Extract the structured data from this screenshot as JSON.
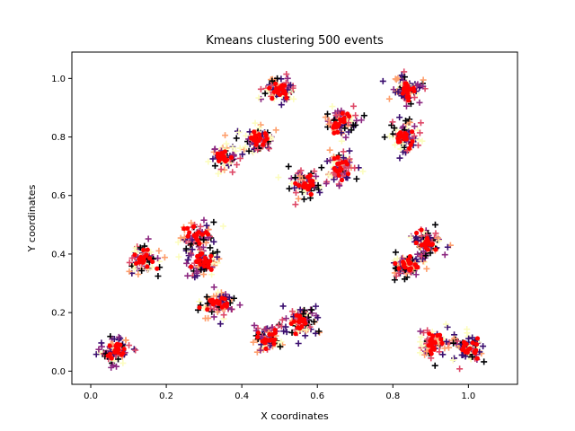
{
  "chart_data": {
    "type": "scatter",
    "title": "Kmeans clustering 500 events",
    "xlabel": "X coordinates",
    "ylabel": "Y coordinates",
    "xlim": [
      -0.05,
      1.13
    ],
    "ylim": [
      -0.045,
      1.09
    ],
    "xticks": [
      "0.0",
      "0.2",
      "0.4",
      "0.6",
      "0.8",
      "1.0"
    ],
    "yticks": [
      "0.0",
      "0.2",
      "0.4",
      "0.6",
      "0.8",
      "1.0"
    ],
    "grid": false,
    "legend": "none",
    "colors": {
      "points": [
        "#000004",
        "#3b0f70",
        "#8c2981",
        "#de4968",
        "#fe9f6d",
        "#fcfdbf"
      ],
      "centroid": "#ff0000"
    },
    "clusters": [
      {
        "cx": 0.06,
        "cy": 0.07
      },
      {
        "cx": 0.14,
        "cy": 0.38
      },
      {
        "cx": 0.28,
        "cy": 0.46
      },
      {
        "cx": 0.3,
        "cy": 0.37
      },
      {
        "cx": 0.34,
        "cy": 0.23
      },
      {
        "cx": 0.35,
        "cy": 0.73
      },
      {
        "cx": 0.45,
        "cy": 0.79
      },
      {
        "cx": 0.47,
        "cy": 0.11
      },
      {
        "cx": 0.5,
        "cy": 0.96
      },
      {
        "cx": 0.56,
        "cy": 0.17
      },
      {
        "cx": 0.57,
        "cy": 0.64
      },
      {
        "cx": 0.66,
        "cy": 0.69
      },
      {
        "cx": 0.66,
        "cy": 0.85
      },
      {
        "cx": 0.84,
        "cy": 0.96
      },
      {
        "cx": 0.83,
        "cy": 0.8
      },
      {
        "cx": 0.84,
        "cy": 0.36
      },
      {
        "cx": 0.89,
        "cy": 0.44
      },
      {
        "cx": 0.91,
        "cy": 0.1
      },
      {
        "cx": 1.0,
        "cy": 0.08
      }
    ]
  }
}
